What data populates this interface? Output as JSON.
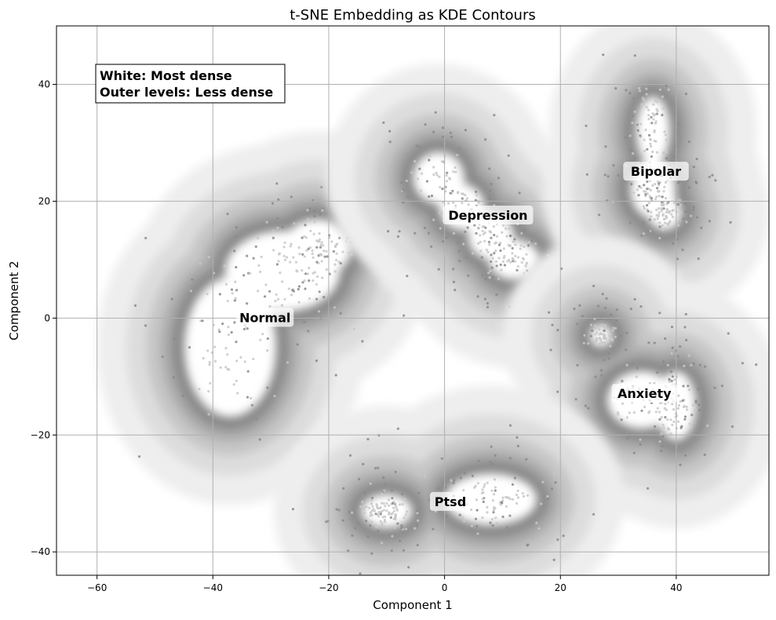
{
  "chart_data": {
    "type": "scatter",
    "title": "t-SNE Embedding as KDE Contours",
    "xlabel": "Component 1",
    "ylabel": "Component 2",
    "xlim": [
      -67,
      56
    ],
    "ylim": [
      -44,
      50
    ],
    "xticks": [
      -60,
      -40,
      -20,
      0,
      20,
      40
    ],
    "yticks": [
      -40,
      -20,
      0,
      20,
      40
    ],
    "xtick_labels": [
      "−60",
      "−40",
      "−20",
      "0",
      "20",
      "40"
    ],
    "ytick_labels": [
      "−40",
      "−20",
      "0",
      "20",
      "40"
    ],
    "grid": true,
    "annotation": [
      "White: Most dense",
      "Outer levels: Less dense"
    ],
    "colors": {
      "levels": [
        "#eeeeee",
        "#dddddd",
        "#c6c6c6",
        "#acacac",
        "#919191",
        "#7a7a7a"
      ],
      "points": "#8a8a8a",
      "core_points": "#c8c8c8",
      "grid": "#b0b0b0"
    },
    "series": [
      {
        "name": "Normal",
        "center": [
          -32,
          0
        ],
        "label_pos": [
          -31,
          0
        ],
        "core_lobes": [
          [
            -37,
            -5,
            8,
            12
          ],
          [
            -28,
            8,
            10,
            7
          ],
          [
            -22,
            12,
            6,
            5
          ]
        ],
        "spread": [
          15,
          14
        ]
      },
      {
        "name": "Depression",
        "center": [
          6,
          17
        ],
        "label_pos": [
          7.5,
          17.5
        ],
        "core_lobes": [
          [
            -1,
            24,
            4.5,
            4.5
          ],
          [
            3,
            19,
            4,
            4
          ],
          [
            8,
            14,
            4,
            4
          ],
          [
            12,
            10,
            4.5,
            3.5
          ]
        ],
        "spread": [
          9,
          7
        ]
      },
      {
        "name": "Bipolar",
        "center": [
          36,
          27
        ],
        "label_pos": [
          36.5,
          25
        ],
        "core_lobes": [
          [
            36,
            32,
            3,
            6
          ],
          [
            36,
            22,
            4,
            5
          ],
          [
            38,
            18,
            3,
            3
          ]
        ],
        "spread": [
          5,
          9
        ]
      },
      {
        "name": "Anxiety",
        "center": [
          35,
          -14
        ],
        "label_pos": [
          34.5,
          -13
        ],
        "core_lobes": [
          [
            27,
            -3,
            2,
            2
          ],
          [
            34,
            -14,
            6,
            5
          ],
          [
            40,
            -15,
            3.5,
            6
          ]
        ],
        "spread": [
          8,
          9
        ]
      },
      {
        "name": "Ptsd",
        "center": [
          0,
          -32
        ],
        "label_pos": [
          1,
          -31.5
        ],
        "core_lobes": [
          [
            -10,
            -33,
            4.5,
            3
          ],
          [
            8,
            -31,
            8,
            4.5
          ]
        ],
        "spread": [
          12,
          5
        ]
      }
    ]
  }
}
